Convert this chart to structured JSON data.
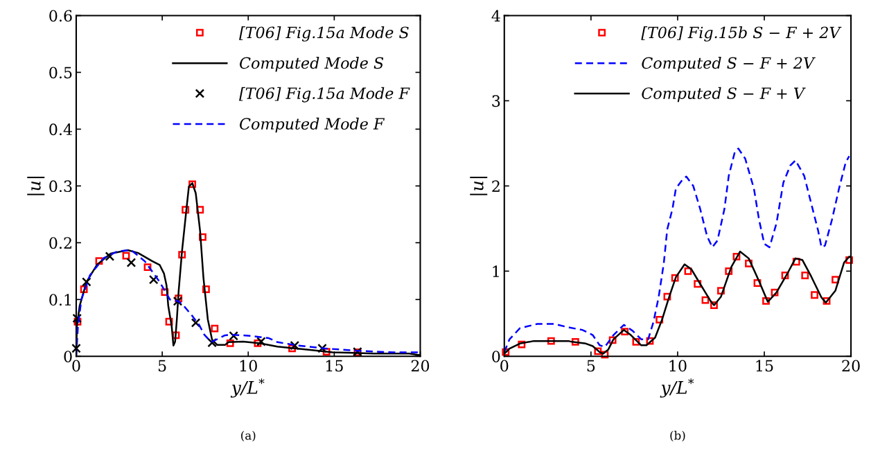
{
  "chart_data": [
    {
      "type": "line",
      "xlabel": "y/L$^{*}$",
      "ylabel": "|u|",
      "xlim": [
        0,
        20
      ],
      "xticks": [
        0,
        5,
        10,
        15,
        20
      ],
      "ylim": [
        0,
        0.6
      ],
      "yticks": [
        0,
        0.1,
        0.2,
        0.3,
        0.4,
        0.5,
        0.6
      ],
      "grid": false,
      "legend": "top right",
      "annotations": [
        "(a)"
      ],
      "series": [
        {
          "name": "[T06] Fig.15a Mode S",
          "type": "scatter",
          "marker": "square",
          "color": "#ff0000",
          "x": [
            0.08,
            0.45,
            1.33,
            2.9,
            4.15,
            5.15,
            5.4,
            5.8,
            5.95,
            6.15,
            6.35,
            6.75,
            7.2,
            7.35,
            7.55,
            8.05,
            8.95,
            10.55,
            12.55,
            14.55,
            16.35
          ],
          "values": [
            0.061,
            0.118,
            0.168,
            0.177,
            0.157,
            0.113,
            0.061,
            0.037,
            0.102,
            0.179,
            0.258,
            0.303,
            0.258,
            0.21,
            0.118,
            0.049,
            0.023,
            0.023,
            0.014,
            0.008,
            0.007
          ]
        },
        {
          "name": "Computed Mode S",
          "line_style": "solid",
          "color": "#000000",
          "x": [
            0,
            0.04,
            0.2,
            0.6,
            1.2,
            2.0,
            3.0,
            3.6,
            4.4,
            4.85,
            5.1,
            5.25,
            5.35,
            5.55,
            5.65,
            5.75,
            5.85,
            5.95,
            6.15,
            6.4,
            6.55,
            6.75,
            6.95,
            7.2,
            7.4,
            7.65,
            7.9,
            8.2,
            8.65,
            8.85,
            9.7,
            10.7,
            11.7,
            13.7,
            14.9,
            17.3,
            19.35,
            20
          ],
          "values": [
            0,
            0.053,
            0.089,
            0.131,
            0.161,
            0.181,
            0.187,
            0.182,
            0.168,
            0.161,
            0.146,
            0.125,
            0.089,
            0.053,
            0.019,
            0.026,
            0.065,
            0.113,
            0.185,
            0.257,
            0.299,
            0.305,
            0.287,
            0.221,
            0.137,
            0.065,
            0.029,
            0.02,
            0.02,
            0.025,
            0.026,
            0.023,
            0.017,
            0.011,
            0.007,
            0.005,
            0.005,
            0.002
          ]
        },
        {
          "name": "[T06] Fig.15a Mode F",
          "type": "scatter",
          "marker": "cross",
          "color": "#000000",
          "x": [
            0,
            0.05,
            0.6,
            1.95,
            3.2,
            4.5,
            5.9,
            6.95,
            7.9,
            9.15,
            10.75,
            12.7,
            14.3,
            16.35
          ],
          "values": [
            0.014,
            0.067,
            0.131,
            0.176,
            0.165,
            0.135,
            0.097,
            0.059,
            0.024,
            0.036,
            0.026,
            0.019,
            0.014,
            0.008
          ]
        },
        {
          "name": "Computed Mode F",
          "line_style": "dashed",
          "color": "#0000ff",
          "x": [
            0,
            0.1,
            0.3,
            0.8,
            1.6,
            2.4,
            3.2,
            4.0,
            4.85,
            5.45,
            5.95,
            6.25,
            6.75,
            7.15,
            7.45,
            7.85,
            8.65,
            9.05,
            10.15,
            11.2,
            11.7,
            12.9,
            14.4,
            16.25,
            18.45,
            20
          ],
          "values": [
            0,
            0.053,
            0.1,
            0.143,
            0.173,
            0.185,
            0.187,
            0.167,
            0.131,
            0.1,
            0.097,
            0.089,
            0.071,
            0.055,
            0.038,
            0.025,
            0.037,
            0.038,
            0.036,
            0.032,
            0.025,
            0.019,
            0.014,
            0.01,
            0.007,
            0.007
          ]
        }
      ]
    },
    {
      "type": "line",
      "xlabel": "y/L$^{*}$",
      "ylabel": "|u|",
      "xlim": [
        0,
        20
      ],
      "xticks": [
        0,
        5,
        10,
        15,
        20
      ],
      "ylim": [
        0,
        4
      ],
      "yticks": [
        0,
        1,
        2,
        3,
        4
      ],
      "grid": false,
      "legend": "top right",
      "annotations": [
        "(b)"
      ],
      "series": [
        {
          "name": "[T06] Fig.15b S − F + 2V",
          "type": "scatter",
          "marker": "square",
          "color": "#ff0000",
          "x": [
            0.08,
            1.0,
            2.7,
            4.1,
            5.4,
            5.8,
            6.25,
            6.95,
            7.6,
            8.4,
            8.95,
            9.4,
            9.85,
            10.6,
            11.15,
            11.6,
            12.1,
            12.5,
            12.95,
            13.4,
            14.1,
            14.6,
            15.1,
            15.6,
            16.2,
            16.85,
            17.35,
            17.9,
            18.6,
            19.1,
            19.9
          ],
          "values": [
            0.05,
            0.14,
            0.18,
            0.17,
            0.06,
            0.02,
            0.19,
            0.29,
            0.17,
            0.18,
            0.43,
            0.7,
            0.92,
            1.0,
            0.85,
            0.66,
            0.6,
            0.77,
            1.0,
            1.17,
            1.09,
            0.86,
            0.65,
            0.75,
            0.95,
            1.11,
            0.95,
            0.72,
            0.65,
            0.9,
            1.13
          ]
        },
        {
          "name": "Computed S − F + 2V",
          "line_style": "dashed",
          "color": "#0000ff",
          "x": [
            0,
            0.3,
            0.9,
            1.9,
            2.9,
            3.7,
            4.5,
            5.1,
            5.5,
            5.8,
            6.3,
            6.9,
            7.4,
            7.9,
            8.3,
            8.6,
            8.9,
            9.2,
            9.4,
            9.7,
            9.9,
            10.3,
            10.5,
            10.9,
            11.3,
            11.7,
            12.0,
            12.3,
            12.7,
            12.95,
            13.3,
            13.5,
            13.9,
            14.4,
            14.7,
            15.0,
            15.3,
            15.7,
            16.1,
            16.5,
            16.8,
            17.3,
            17.7,
            18.1,
            18.3,
            18.5,
            18.9,
            19.3,
            19.7,
            19.9
          ],
          "values": [
            0.05,
            0.2,
            0.33,
            0.38,
            0.38,
            0.34,
            0.31,
            0.25,
            0.13,
            0.11,
            0.25,
            0.37,
            0.3,
            0.2,
            0.2,
            0.4,
            0.69,
            1.09,
            1.49,
            1.73,
            1.97,
            2.08,
            2.11,
            2.0,
            1.73,
            1.41,
            1.28,
            1.36,
            1.73,
            2.12,
            2.4,
            2.44,
            2.32,
            1.97,
            1.6,
            1.32,
            1.28,
            1.56,
            2.04,
            2.24,
            2.3,
            2.12,
            1.8,
            1.48,
            1.28,
            1.3,
            1.6,
            1.96,
            2.28,
            2.35
          ]
        },
        {
          "name": "Computed S − F + V",
          "line_style": "solid",
          "color": "#000000",
          "x": [
            0,
            0.3,
            0.9,
            1.7,
            2.9,
            3.7,
            3.9,
            4.7,
            5.1,
            5.5,
            5.7,
            6.0,
            6.3,
            6.9,
            7.3,
            7.9,
            8.2,
            8.7,
            9.1,
            9.5,
            9.9,
            10.4,
            10.8,
            11.3,
            11.9,
            12.1,
            12.5,
            13.1,
            13.6,
            14.1,
            14.7,
            15.2,
            15.7,
            16.3,
            16.8,
            17.2,
            17.7,
            18.3,
            18.55,
            19.1,
            19.6,
            19.9,
            20
          ],
          "values": [
            0.03,
            0.09,
            0.15,
            0.18,
            0.18,
            0.18,
            0.17,
            0.15,
            0.12,
            0.05,
            0.03,
            0.08,
            0.2,
            0.31,
            0.25,
            0.13,
            0.13,
            0.22,
            0.43,
            0.69,
            0.93,
            1.08,
            1.02,
            0.85,
            0.65,
            0.6,
            0.7,
            1.05,
            1.23,
            1.15,
            0.88,
            0.64,
            0.75,
            0.96,
            1.15,
            1.13,
            0.94,
            0.69,
            0.63,
            0.77,
            1.1,
            1.17,
            1.17
          ]
        }
      ]
    }
  ]
}
